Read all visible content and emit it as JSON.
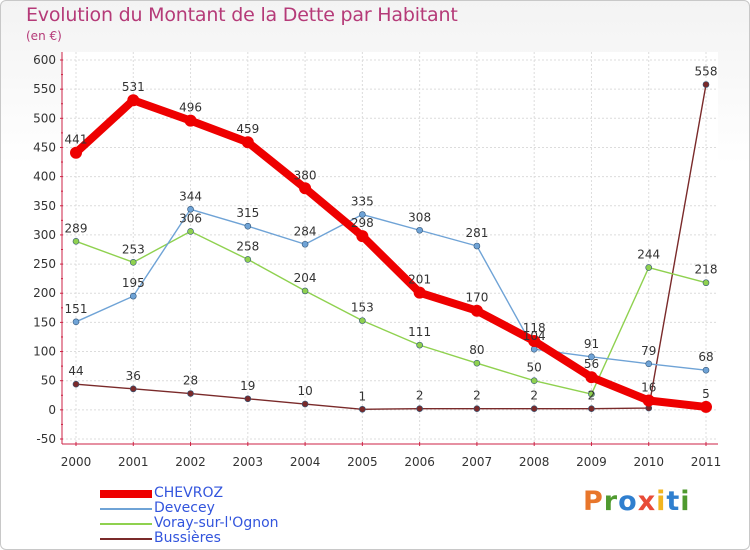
{
  "header": {
    "title": "Evolution du Montant de la Dette par Habitant",
    "subtitle": "(en €)"
  },
  "logo": {
    "letters": [
      "P",
      "r",
      "o",
      "x",
      "i",
      "t",
      "i"
    ],
    "colors": [
      "#e8762b",
      "#4f9a2f",
      "#2f7fcf",
      "#e84b37",
      "#f2b51f",
      "#2f7fcf",
      "#4f9a2f"
    ]
  },
  "chart_data": {
    "type": "line",
    "x": [
      "2000",
      "2001",
      "2002",
      "2003",
      "2004",
      "2005",
      "2006",
      "2007",
      "2008",
      "2009",
      "2010",
      "2011"
    ],
    "ylim": [
      -50,
      600
    ],
    "yticks": [
      "-50",
      "0",
      "50",
      "100",
      "150",
      "200",
      "250",
      "300",
      "350",
      "400",
      "450",
      "500",
      "550",
      "600"
    ],
    "grid": true,
    "legend_position": "bottom-left",
    "series": [
      {
        "name": "Bussières",
        "color": "#7a2a2a",
        "values": [
          44,
          36,
          28,
          19,
          10,
          1,
          2,
          2,
          2,
          2,
          3,
          558
        ],
        "labels": [
          "44",
          "36",
          "28",
          "19",
          "10",
          "1",
          "2",
          "2",
          "2",
          "2",
          "",
          "558"
        ]
      },
      {
        "name": "Voray-sur-l'Ognon",
        "color": "#8fd14f",
        "values": [
          289,
          253,
          306,
          258,
          204,
          153,
          111,
          80,
          50,
          27,
          244,
          218
        ],
        "labels": [
          "289",
          "253",
          "306",
          "258",
          "204",
          "153",
          "111",
          "80",
          "50",
          "",
          "244",
          "218"
        ]
      },
      {
        "name": "Devecey",
        "color": "#6fa3d6",
        "values": [
          151,
          195,
          344,
          315,
          284,
          335,
          308,
          281,
          104,
          91,
          79,
          68
        ],
        "labels": [
          "151",
          "195",
          "344",
          "315",
          "284",
          "335",
          "308",
          "281",
          "104",
          "91",
          "79",
          "68"
        ]
      },
      {
        "name": "CHEVROZ",
        "color": "#ee0000",
        "values": [
          441,
          531,
          496,
          459,
          380,
          298,
          201,
          170,
          118,
          56,
          16,
          5
        ],
        "labels": [
          "441",
          "531",
          "496",
          "459",
          "380",
          "298",
          "201",
          "170",
          "118",
          "56",
          "16",
          "5"
        ]
      }
    ],
    "legend_order": [
      "CHEVROZ",
      "Devecey",
      "Voray-sur-l'Ognon",
      "Bussières"
    ]
  }
}
